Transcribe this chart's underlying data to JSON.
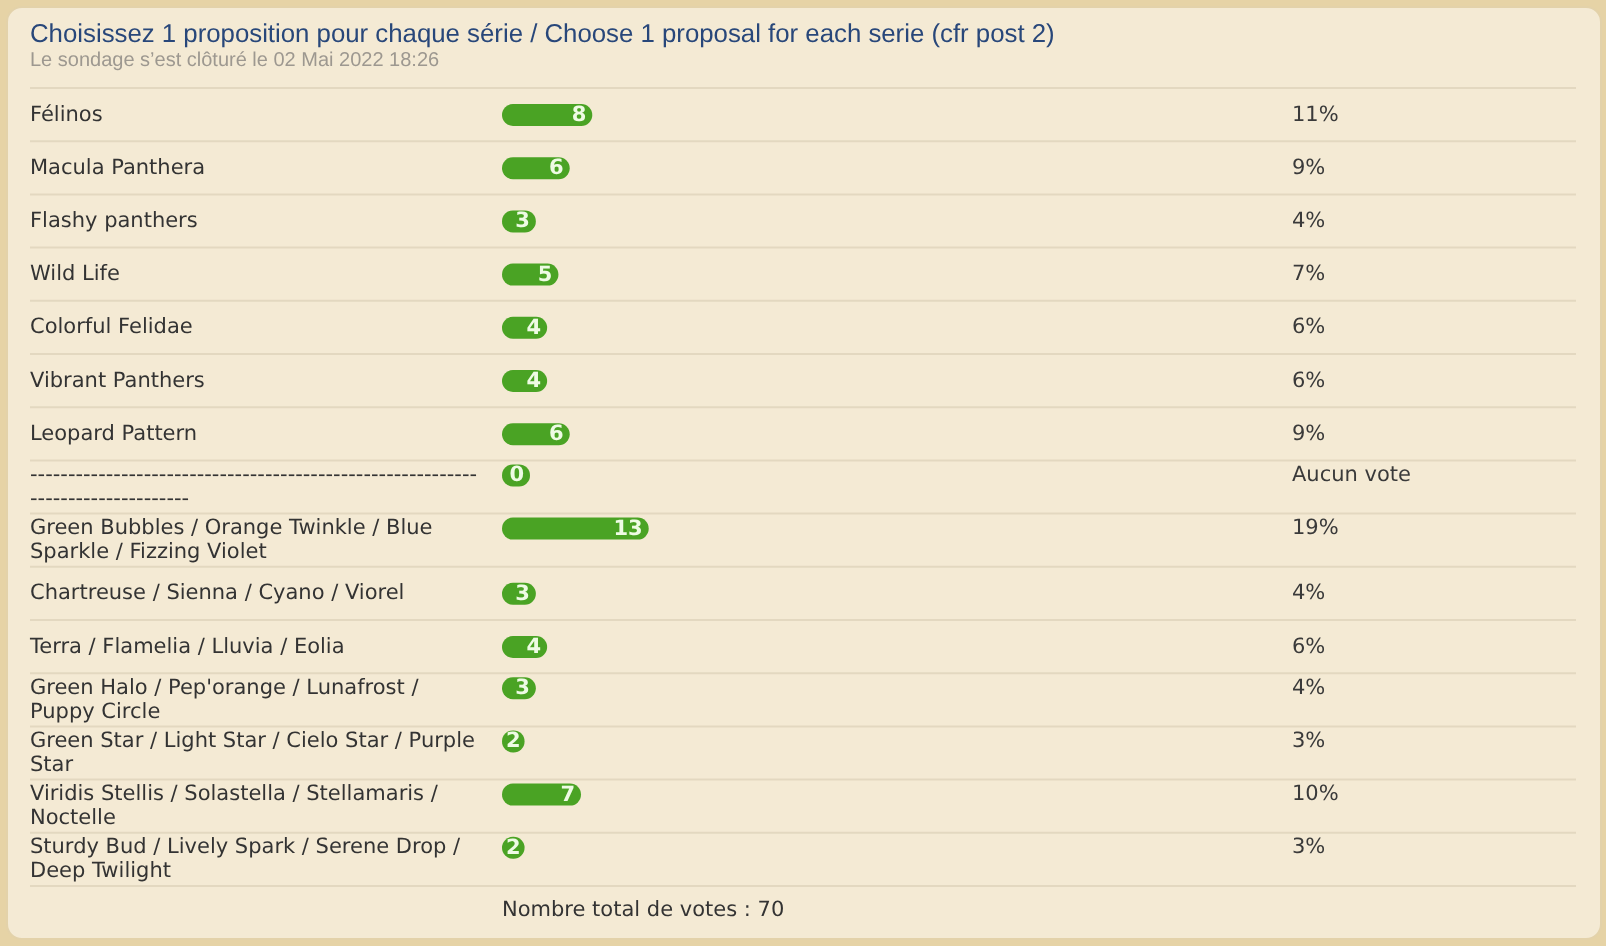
{
  "chart_data": {
    "type": "bar",
    "orientation": "horizontal",
    "title": "Choisissez 1 proposition pour chaque série / Choose 1 proposal for each serie (cfr post 2)",
    "subtitle": "Le sondage s’est clôturé le 02 Mai 2022 18:26",
    "categories": [
      "Félinos",
      "Macula Panthera",
      "Flashy panthers",
      "Wild Life",
      "Colorful Felidae",
      "Vibrant Panthers",
      "Leopard Pattern",
      "--------------------------------------------------------------------------------",
      "Green Bubbles / Orange Twinkle / Blue Sparkle / Fizzing Violet",
      "Chartreuse / Sienna / Cyano / Viorel",
      "Terra / Flamelia / Lluvia / Eolia",
      "Green Halo / Pep'orange / Lunafrost / Puppy Circle",
      "Green Star / Light Star / Cielo Star / Purple Star",
      "Viridis Stellis / Solastella / Stellamaris / Noctelle",
      "Sturdy Bud / Lively Spark / Serene Drop / Deep Twilight"
    ],
    "values": [
      8,
      6,
      3,
      5,
      4,
      4,
      6,
      0,
      13,
      3,
      4,
      3,
      2,
      7,
      2
    ],
    "color": "#4aa324",
    "data_labels": true,
    "grid": "y",
    "tick_labels": "y",
    "annotations": [
      "11%",
      "9%",
      "4%",
      "7%",
      "6%",
      "6%",
      "9%",
      "Aucun vote",
      "19%",
      "4%",
      "6%",
      "4%",
      "3%",
      "10%",
      "3%",
      "Nombre total de votes : 70"
    ]
  }
}
